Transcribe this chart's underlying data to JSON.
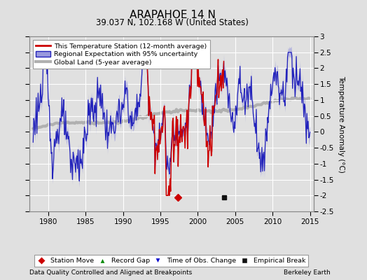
{
  "title": "ARAPAHOE 14 N",
  "subtitle": "39.037 N, 102.168 W (United States)",
  "xlabel_left": "Data Quality Controlled and Aligned at Breakpoints",
  "xlabel_right": "Berkeley Earth",
  "ylabel": "Temperature Anomaly (°C)",
  "xlim": [
    1977.5,
    2015.5
  ],
  "ylim": [
    -2.5,
    3.0
  ],
  "yticks": [
    -2.5,
    -2,
    -1.5,
    -1,
    -0.5,
    0,
    0.5,
    1,
    1.5,
    2,
    2.5,
    3
  ],
  "xticks": [
    1980,
    1985,
    1990,
    1995,
    2000,
    2005,
    2010,
    2015
  ],
  "bg_color": "#e0e0e0",
  "plot_bg_color": "#e0e0e0",
  "grid_color": "#ffffff",
  "regional_color": "#2222bb",
  "regional_fill_color": "#9999dd",
  "station_color": "#cc0000",
  "global_color": "#b0b0b0",
  "legend_marker_colors": {
    "station_move": "#cc0000",
    "record_gap": "#008800",
    "time_obs": "#0000cc",
    "empirical": "#111111"
  },
  "station_move_x": 1997.3,
  "station_move_y": -2.05,
  "time_obs_x": 1997.3,
  "time_obs_y": -2.05,
  "empirical_x": 2003.5,
  "empirical_y": -2.05
}
